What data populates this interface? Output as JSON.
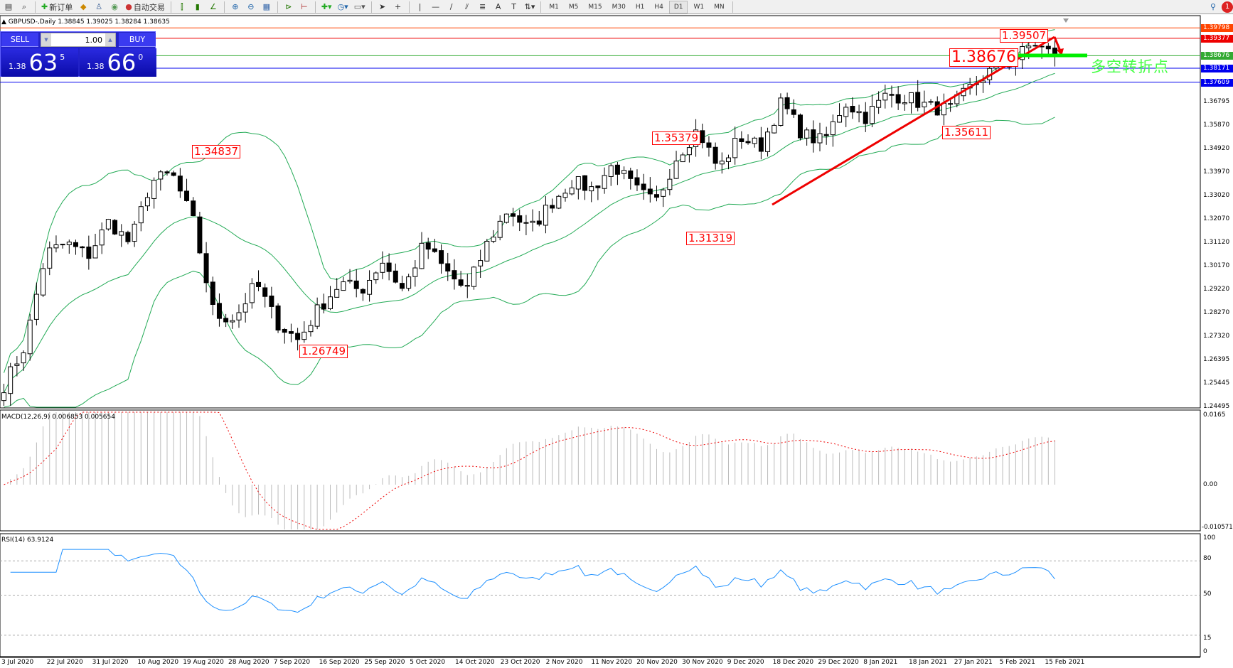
{
  "toolbar": {
    "new_order": "新订单",
    "auto_trading": "自动交易",
    "timeframes": [
      "M1",
      "M5",
      "M15",
      "M30",
      "H1",
      "H4",
      "D1",
      "W1",
      "MN"
    ],
    "active_timeframe": "D1",
    "notification_count": "1"
  },
  "chart": {
    "title": "GBPUSD-,Daily  1.38845 1.39025 1.38284 1.38635",
    "symbol": "GBPUSD-",
    "period": "Daily"
  },
  "trade_panel": {
    "sell": "SELL",
    "buy": "BUY",
    "lot": "1.00",
    "sell_prefix": "1.38",
    "sell_big": "63",
    "sell_sup": "5",
    "buy_prefix": "1.38",
    "buy_big": "66",
    "buy_sup": "0"
  },
  "price_axis": [
    "1.36795",
    "1.35870",
    "1.34920",
    "1.33970",
    "1.33020",
    "1.32070",
    "1.31120",
    "1.30170",
    "1.29220",
    "1.28270",
    "1.27320",
    "1.26395",
    "1.25445",
    "1.24495"
  ],
  "levels": [
    {
      "price": "1.39798",
      "color": "#ff4400"
    },
    {
      "price": "1.39377",
      "color": "#ee0000"
    },
    {
      "price": "1.38676",
      "color": "#33aa33"
    },
    {
      "price": "1.38171",
      "color": "#0000ee"
    },
    {
      "price": "1.37609",
      "color": "#0000ee"
    }
  ],
  "annotations": {
    "a1": "1.34837",
    "a2": "1.35379",
    "a3": "1.31319",
    "a4": "1.26749",
    "a5": "1.35611",
    "a6": "1.39507",
    "a7": "1.38676",
    "turning_point": "多空转折点"
  },
  "macd": {
    "label": "MACD(12,26,9) 0.006853 0.005654",
    "axis": [
      "0.0165",
      "0.00",
      "-0.010571"
    ]
  },
  "rsi": {
    "label": "RSI(14) 63.9124",
    "axis": [
      "100",
      "80",
      "50",
      "15",
      "0"
    ]
  },
  "dates": [
    "3 Jul 2020",
    "22 Jul 2020",
    "31 Jul 2020",
    "10 Aug 2020",
    "19 Aug 2020",
    "28 Aug 2020",
    "7 Sep 2020",
    "16 Sep 2020",
    "25 Sep 2020",
    "5 Oct 2020",
    "14 Oct 2020",
    "23 Oct 2020",
    "2 Nov 2020",
    "11 Nov 2020",
    "20 Nov 2020",
    "30 Nov 2020",
    "9 Dec 2020",
    "18 Dec 2020",
    "29 Dec 2020",
    "8 Jan 2021",
    "18 Jan 2021",
    "27 Jan 2021",
    "5 Feb 2021",
    "15 Feb 2021"
  ],
  "price_path": [
    1.2538,
    1.2697,
    1.307,
    1.311,
    1.306,
    1.32,
    1.311,
    1.336,
    1.339,
    1.32,
    1.282,
    1.281,
    1.295,
    1.279,
    1.272,
    1.285,
    1.295,
    1.292,
    1.304,
    1.292,
    1.311,
    1.3,
    1.292,
    1.311,
    1.325,
    1.316,
    1.327,
    1.336,
    1.333,
    1.343,
    1.333,
    1.327,
    1.346,
    1.357,
    1.341,
    1.354,
    1.35,
    1.368,
    1.355,
    1.352,
    1.368,
    1.362,
    1.371,
    1.37,
    1.366,
    1.365,
    1.374,
    1.381,
    1.385,
    1.392,
    1.38635
  ]
}
